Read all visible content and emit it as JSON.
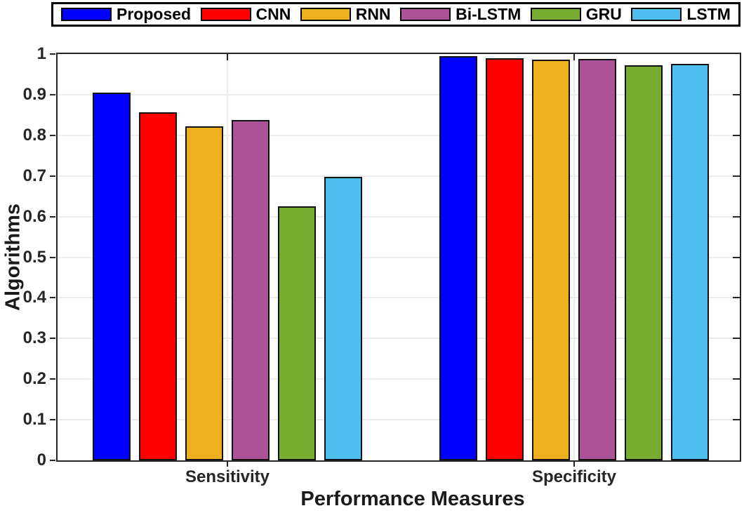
{
  "chart_data": {
    "type": "bar",
    "title": "",
    "xlabel": "Performance Measures",
    "ylabel": "Algorithms",
    "categories": [
      "Sensitivity",
      "Specificity"
    ],
    "series": [
      {
        "name": "Proposed",
        "color": "#0000FF",
        "values": [
          0.905,
          0.995
        ]
      },
      {
        "name": "CNN",
        "color": "#FF0000",
        "values": [
          0.856,
          0.99
        ]
      },
      {
        "name": "RNN",
        "color": "#EDB120",
        "values": [
          0.822,
          0.987
        ]
      },
      {
        "name": "Bi-LSTM",
        "color": "#AB5396",
        "values": [
          0.837,
          0.988
        ]
      },
      {
        "name": "GRU",
        "color": "#77AC30",
        "values": [
          0.626,
          0.972
        ]
      },
      {
        "name": "LSTM",
        "color": "#4DBEEE",
        "values": [
          0.698,
          0.976
        ]
      }
    ],
    "ylim": [
      0,
      1
    ],
    "yticks": [
      0,
      0.1,
      0.2,
      0.3,
      0.4,
      0.5,
      0.6,
      0.7,
      0.8,
      0.9,
      1
    ],
    "ytick_labels": [
      "0",
      "0.1",
      "0.2",
      "0.3",
      "0.4",
      "0.5",
      "0.6",
      "0.7",
      "0.8",
      "0.9",
      "1"
    ],
    "grid": "on",
    "legend_position": "top",
    "colors": {
      "axis": "#262626",
      "grid": "#ECECEC",
      "bar_edge": "#111111",
      "legend_border": "#000000",
      "background": "#FFFFFF"
    }
  }
}
